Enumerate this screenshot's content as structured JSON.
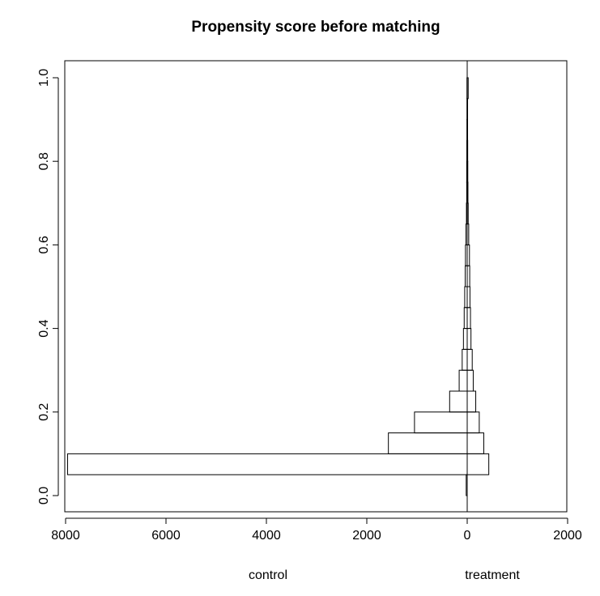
{
  "chart_data": {
    "type": "bar",
    "orientation": "horizontal",
    "title": "Propensity score before matching",
    "xlabel": "",
    "ylabel": "",
    "group_labels": {
      "left": "control",
      "right": "treatment"
    },
    "xlim": [
      -2000,
      8000
    ],
    "x_reversed": true,
    "ylim": [
      0.0,
      1.0
    ],
    "x_ticks": [
      "8000",
      "6000",
      "4000",
      "2000",
      "0",
      "2000"
    ],
    "y_ticks": [
      "0.0",
      "0.2",
      "0.4",
      "0.6",
      "0.8",
      "1.0"
    ],
    "bin_width": 0.05,
    "bins_start": [
      0.0,
      0.05,
      0.1,
      0.15,
      0.2,
      0.25,
      0.3,
      0.35,
      0.4,
      0.45,
      0.5,
      0.55,
      0.6,
      0.65,
      0.7,
      0.75,
      0.8,
      0.85,
      0.9,
      0.95
    ],
    "series": [
      {
        "name": "control",
        "values": [
          20,
          7960,
          1570,
          1050,
          350,
          160,
          100,
          75,
          60,
          50,
          40,
          35,
          25,
          15,
          10,
          10,
          8,
          6,
          5,
          5
        ]
      },
      {
        "name": "treatment",
        "values": [
          0,
          430,
          330,
          240,
          170,
          120,
          100,
          75,
          65,
          55,
          50,
          45,
          30,
          20,
          15,
          12,
          10,
          8,
          8,
          20
        ]
      }
    ],
    "grid": false,
    "legend": "none"
  }
}
